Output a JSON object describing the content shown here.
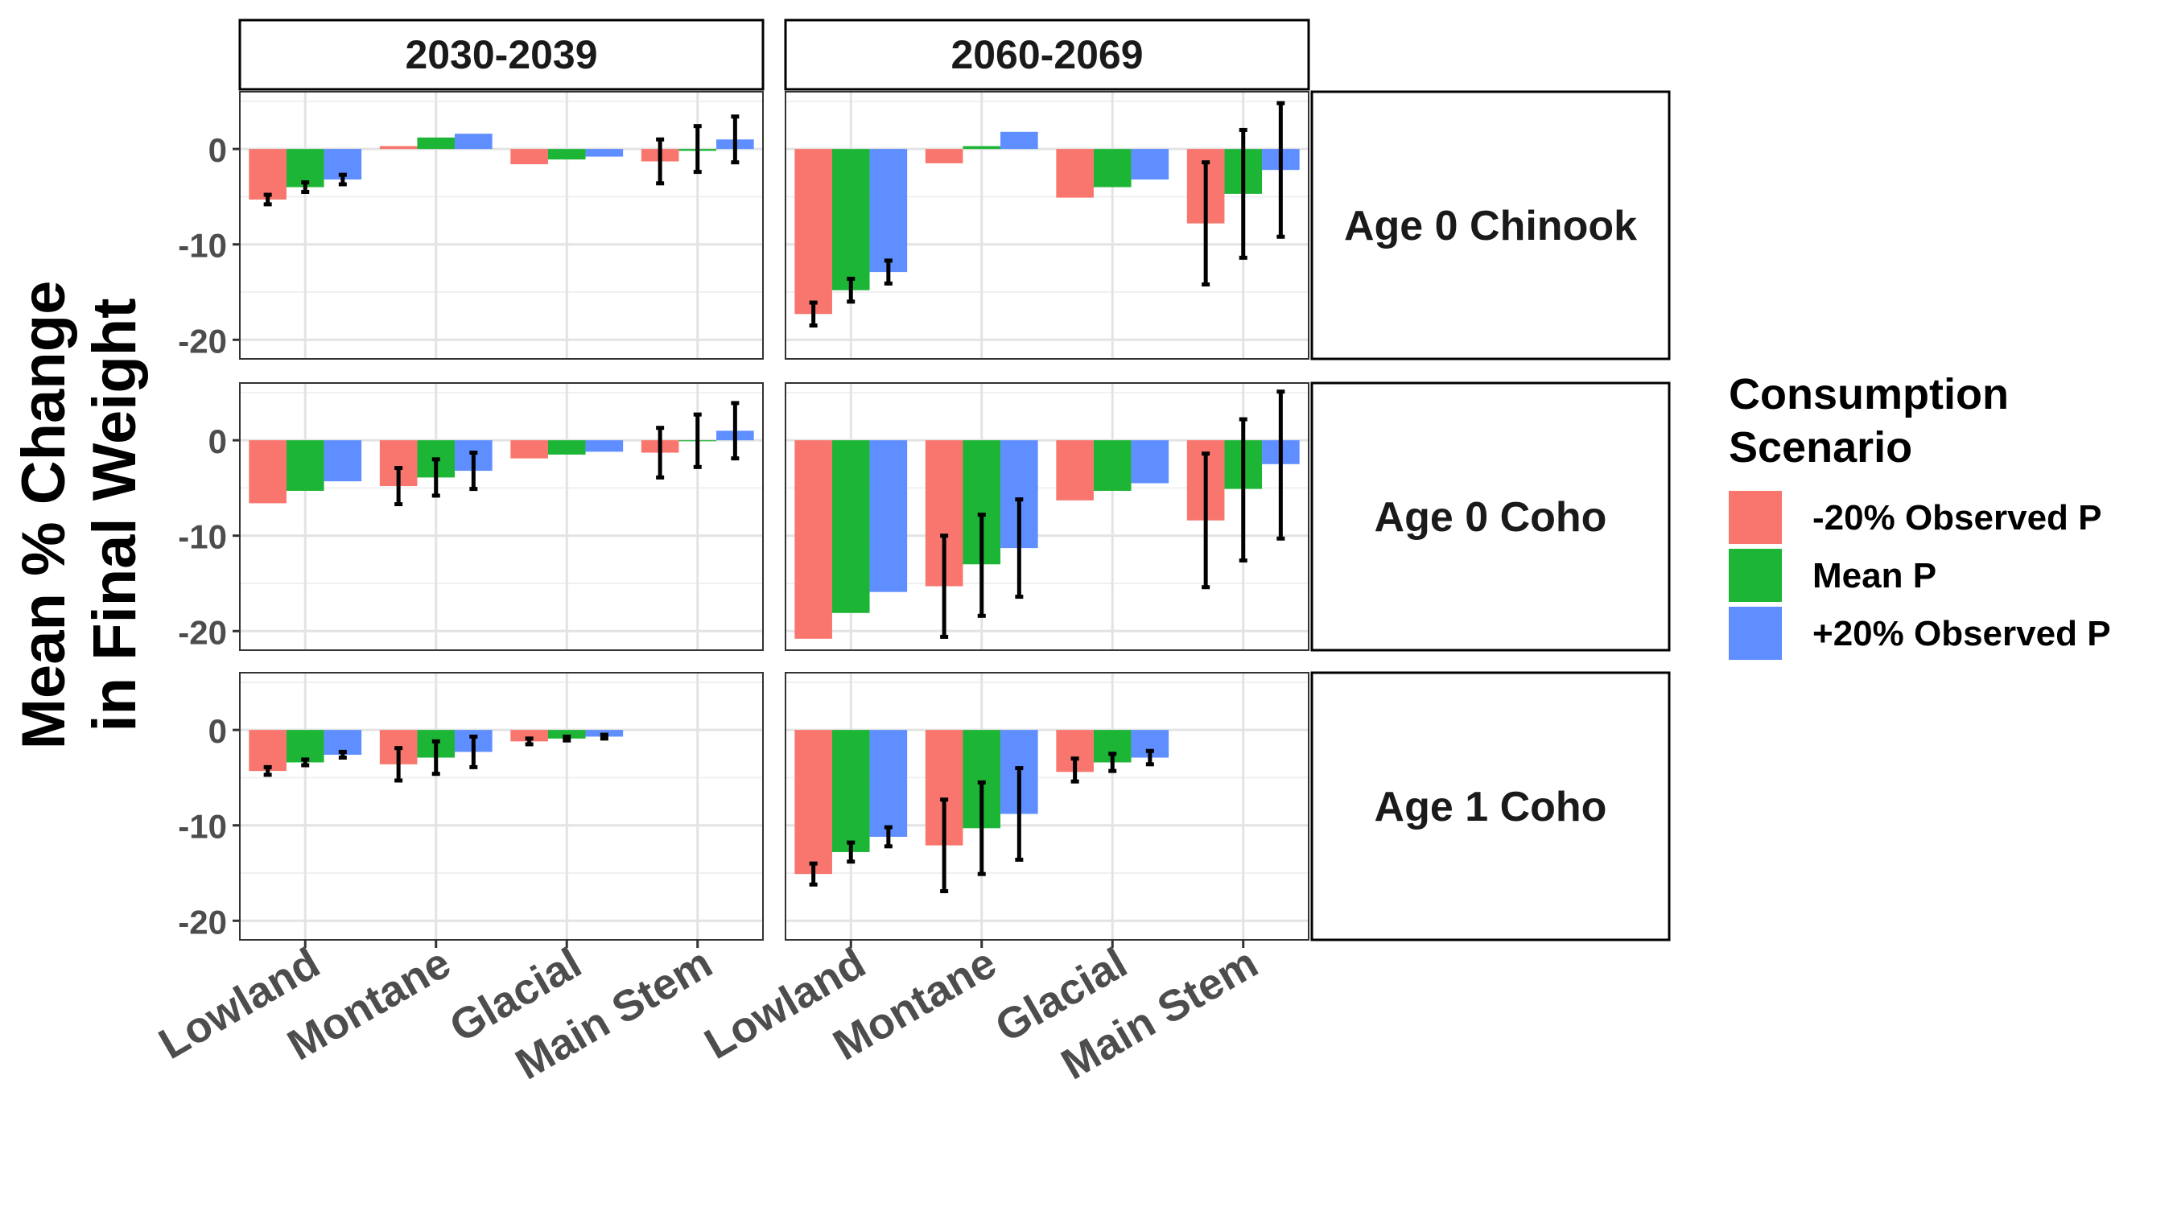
{
  "chart_data": {
    "type": "bar",
    "ylabel": [
      "Mean % Change",
      "in Final Weight"
    ],
    "xlabel": "",
    "categories": [
      "Lowland",
      "Montane",
      "Glacial",
      "Main Stem"
    ],
    "columns": [
      "2030-2039",
      "2060-2069"
    ],
    "rows": [
      "Age 0 Chinook",
      "Age 0 Coho",
      "Age 1 Coho"
    ],
    "ylim": [
      -22,
      6
    ],
    "yticks": [
      0,
      -10,
      -20
    ],
    "grid": true,
    "legend": {
      "title": [
        "Consumption",
        "Scenario"
      ],
      "position": "right",
      "entries": [
        "-20% Observed P",
        "Mean P",
        "+20% Observed P"
      ],
      "colors": [
        "#F8766D",
        "#1DB535",
        "#5E8EFF"
      ]
    },
    "panels": [
      {
        "row": "Age 0 Chinook",
        "column": "2030-2039",
        "series": [
          {
            "scenario": "-20% Observed P",
            "values": [
              -5.3,
              0.3,
              -1.6,
              -1.3
            ],
            "errors": [
              [
                -5.8,
                -4.8
              ],
              null,
              null,
              [
                -3.6,
                1.0
              ]
            ]
          },
          {
            "scenario": "Mean P",
            "values": [
              -4.0,
              1.2,
              -1.1,
              -0.2
            ],
            "errors": [
              [
                -4.5,
                -3.5
              ],
              null,
              null,
              [
                -2.4,
                2.4
              ]
            ]
          },
          {
            "scenario": "+20% Observed P",
            "values": [
              -3.2,
              1.6,
              -0.8,
              1.0
            ],
            "errors": [
              [
                -3.7,
                -2.7
              ],
              null,
              null,
              [
                -1.4,
                3.4
              ]
            ]
          }
        ]
      },
      {
        "row": "Age 0 Chinook",
        "column": "2060-2069",
        "series": [
          {
            "scenario": "-20% Observed P",
            "values": [
              -17.3,
              -1.5,
              -5.1,
              -7.8
            ],
            "errors": [
              [
                -18.5,
                -16.1
              ],
              null,
              null,
              [
                -14.2,
                -1.4
              ]
            ]
          },
          {
            "scenario": "Mean P",
            "values": [
              -14.8,
              0.3,
              -4.0,
              -4.7
            ],
            "errors": [
              [
                -16.0,
                -13.6
              ],
              null,
              null,
              [
                -11.4,
                2.0
              ]
            ]
          },
          {
            "scenario": "+20% Observed P",
            "values": [
              -12.9,
              1.8,
              -3.2,
              -2.2
            ],
            "errors": [
              [
                -14.1,
                -11.7
              ],
              null,
              null,
              [
                -9.2,
                4.8
              ]
            ]
          }
        ]
      },
      {
        "row": "Age 0 Coho",
        "column": "2030-2039",
        "series": [
          {
            "scenario": "-20% Observed P",
            "values": [
              -6.6,
              -4.8,
              -1.9,
              -1.3
            ],
            "errors": [
              null,
              [
                -6.7,
                -2.9
              ],
              null,
              [
                -3.9,
                1.3
              ]
            ]
          },
          {
            "scenario": "Mean P",
            "values": [
              -5.3,
              -3.9,
              -1.5,
              -0.1
            ],
            "errors": [
              null,
              [
                -5.8,
                -2.0
              ],
              null,
              [
                -2.8,
                2.7
              ]
            ]
          },
          {
            "scenario": "+20% Observed P",
            "values": [
              -4.3,
              -3.2,
              -1.2,
              1.0
            ],
            "errors": [
              null,
              [
                -5.1,
                -1.3
              ],
              null,
              [
                -1.9,
                3.9
              ]
            ]
          }
        ]
      },
      {
        "row": "Age 0 Coho",
        "column": "2060-2069",
        "series": [
          {
            "scenario": "-20% Observed P",
            "values": [
              -20.8,
              -15.3,
              -6.3,
              -8.4
            ],
            "errors": [
              null,
              [
                -20.6,
                -10.0
              ],
              null,
              [
                -15.4,
                -1.4
              ]
            ]
          },
          {
            "scenario": "Mean P",
            "values": [
              -18.1,
              -13.0,
              -5.3,
              -5.1
            ],
            "errors": [
              null,
              [
                -18.4,
                -7.8
              ],
              null,
              [
                -12.6,
                2.2
              ]
            ]
          },
          {
            "scenario": "+20% Observed P",
            "values": [
              -15.9,
              -11.3,
              -4.5,
              -2.5
            ],
            "errors": [
              null,
              [
                -16.4,
                -6.2
              ],
              null,
              [
                -10.3,
                5.1
              ]
            ]
          }
        ]
      },
      {
        "row": "Age 1 Coho",
        "column": "2030-2039",
        "series": [
          {
            "scenario": "-20% Observed P",
            "values": [
              -4.3,
              -3.6,
              -1.2,
              0
            ],
            "errors": [
              [
                -4.7,
                -3.9
              ],
              [
                -5.3,
                -1.9
              ],
              [
                -1.5,
                -0.9
              ],
              null
            ]
          },
          {
            "scenario": "Mean P",
            "values": [
              -3.4,
              -2.9,
              -0.9,
              0
            ],
            "errors": [
              [
                -3.7,
                -3.1
              ],
              [
                -4.6,
                -1.2
              ],
              [
                -1.1,
                -0.7
              ],
              null
            ]
          },
          {
            "scenario": "+20% Observed P",
            "values": [
              -2.6,
              -2.3,
              -0.7,
              0
            ],
            "errors": [
              [
                -2.9,
                -2.3
              ],
              [
                -3.9,
                -0.7
              ],
              [
                -0.9,
                -0.5
              ],
              null
            ]
          }
        ]
      },
      {
        "row": "Age 1 Coho",
        "column": "2060-2069",
        "series": [
          {
            "scenario": "-20% Observed P",
            "values": [
              -15.1,
              -12.1,
              -4.4,
              0
            ],
            "errors": [
              [
                -16.2,
                -14.0
              ],
              [
                -16.9,
                -7.3
              ],
              [
                -5.4,
                -3.0
              ],
              null
            ]
          },
          {
            "scenario": "Mean P",
            "values": [
              -12.8,
              -10.3,
              -3.4,
              0
            ],
            "errors": [
              [
                -13.8,
                -11.8
              ],
              [
                -15.1,
                -5.5
              ],
              [
                -4.3,
                -2.5
              ],
              null
            ]
          },
          {
            "scenario": "+20% Observed P",
            "values": [
              -11.2,
              -8.8,
              -2.9,
              0
            ],
            "errors": [
              [
                -12.2,
                -10.2
              ],
              [
                -13.6,
                -4.0
              ],
              [
                -3.6,
                -2.2
              ],
              null
            ]
          }
        ]
      }
    ]
  }
}
